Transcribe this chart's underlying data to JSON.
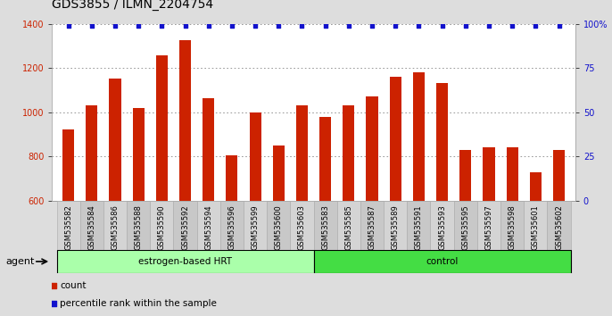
{
  "title": "GDS3855 / ILMN_2204754",
  "categories": [
    "GSM535582",
    "GSM535584",
    "GSM535586",
    "GSM535588",
    "GSM535590",
    "GSM535592",
    "GSM535594",
    "GSM535596",
    "GSM535599",
    "GSM535600",
    "GSM535603",
    "GSM535583",
    "GSM535585",
    "GSM535587",
    "GSM535589",
    "GSM535591",
    "GSM535593",
    "GSM535595",
    "GSM535597",
    "GSM535598",
    "GSM535601",
    "GSM535602"
  ],
  "bar_values": [
    920,
    1030,
    1150,
    1020,
    1255,
    1325,
    1065,
    805,
    1000,
    850,
    1030,
    980,
    1030,
    1070,
    1160,
    1180,
    1130,
    830,
    840,
    840,
    730,
    830
  ],
  "percentile_values": [
    99,
    99,
    99,
    99,
    99,
    99,
    99,
    99,
    99,
    99,
    99,
    99,
    99,
    99,
    99,
    99,
    99,
    99,
    99,
    99,
    99,
    99
  ],
  "bar_color": "#cc2200",
  "percentile_color": "#1111cc",
  "ylim_left": [
    600,
    1400
  ],
  "ylim_right": [
    0,
    100
  ],
  "yticks_left": [
    600,
    800,
    1000,
    1200,
    1400
  ],
  "ytick_labels_left": [
    "600",
    "800",
    "1000",
    "1200",
    "1400"
  ],
  "yticks_right": [
    0,
    25,
    50,
    75,
    100
  ],
  "ytick_labels_right": [
    "0",
    "25",
    "50",
    "75",
    "100%"
  ],
  "group1_label": "estrogen-based HRT",
  "group2_label": "control",
  "group1_count": 11,
  "group2_count": 11,
  "group1_color": "#aaffaa",
  "group2_color": "#44dd44",
  "agent_label": "agent",
  "legend_count_label": "count",
  "legend_percentile_label": "percentile rank within the sample",
  "background_color": "#dddddd",
  "plot_bg_color": "#ffffff",
  "xtick_bg_even": "#d4d4d4",
  "xtick_bg_odd": "#c8c8c8",
  "title_fontsize": 10,
  "tick_fontsize": 7,
  "xtick_fontsize": 6,
  "dotted_line_color": "#555555",
  "bar_width": 0.5
}
